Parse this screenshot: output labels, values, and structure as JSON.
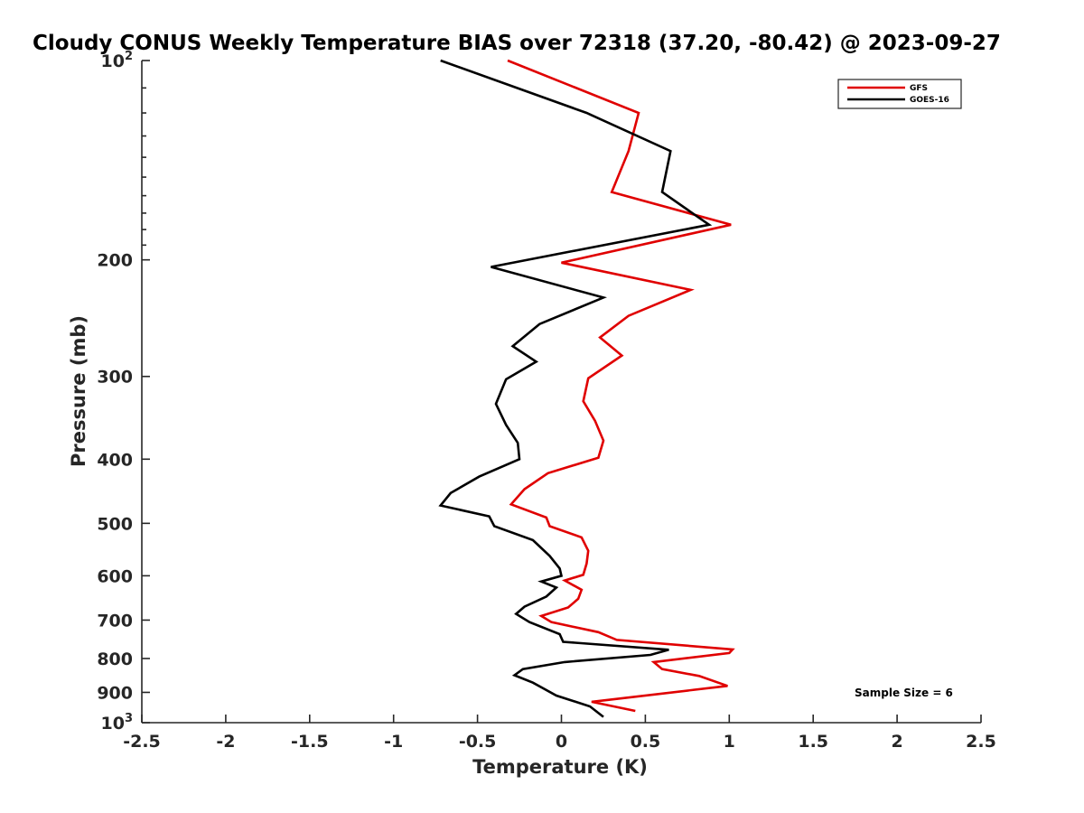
{
  "chart_data": {
    "type": "line",
    "title": "Cloudy CONUS Weekly Temperature BIAS over 72318 (37.20, -80.42) @ 2023-09-27",
    "xlabel": "Temperature (K)",
    "ylabel": "Pressure (mb)",
    "xlim": [
      -2.5,
      2.5
    ],
    "ylim": [
      100,
      1000
    ],
    "y_scale": "log",
    "y_direction": "reversed",
    "x_ticks": [
      "-2.5",
      "-2",
      "-1.5",
      "-1",
      "-0.5",
      "0",
      "0.5",
      "1",
      "1.5",
      "2",
      "2.5"
    ],
    "x_tick_values": [
      -2.5,
      -2,
      -1.5,
      -1,
      -0.5,
      0,
      0.5,
      1,
      1.5,
      2,
      2.5
    ],
    "y_ticks": [
      {
        "value": 100,
        "label": "10",
        "exp": "2"
      },
      {
        "value": 200,
        "label": "200"
      },
      {
        "value": 300,
        "label": "300"
      },
      {
        "value": 400,
        "label": "400"
      },
      {
        "value": 500,
        "label": "500"
      },
      {
        "value": 600,
        "label": "600"
      },
      {
        "value": 700,
        "label": "700"
      },
      {
        "value": 800,
        "label": "800"
      },
      {
        "value": 900,
        "label": "900"
      },
      {
        "value": 1000,
        "label": "10",
        "exp": "3"
      }
    ],
    "grid": false,
    "legend_position": "top-right",
    "annotation": "Sample Size = 6",
    "series": [
      {
        "name": "GFS",
        "color": "#e00000",
        "x": [
          -0.32,
          0.46,
          0.4,
          0.3,
          1.01,
          0.0,
          0.77,
          0.4,
          0.23,
          0.36,
          0.16,
          0.13,
          0.2,
          0.25,
          0.22,
          -0.08,
          -0.22,
          -0.3,
          -0.09,
          -0.07,
          0.12,
          0.16,
          0.15,
          0.13,
          0.02,
          0.12,
          0.1,
          0.04,
          -0.12,
          -0.06,
          0.22,
          0.33,
          1.02,
          1.0,
          0.55,
          0.6,
          0.82,
          0.99,
          0.18,
          0.44
        ],
        "y": [
          100,
          120,
          137,
          158,
          177,
          202,
          222,
          243,
          262,
          279,
          302,
          327,
          350,
          375,
          398,
          420,
          444,
          468,
          490,
          505,
          525,
          550,
          575,
          598,
          610,
          630,
          650,
          670,
          690,
          705,
          730,
          750,
          775,
          785,
          810,
          830,
          850,
          880,
          930,
          960
        ]
      },
      {
        "name": "GOES-16",
        "color": "#000000",
        "x": [
          -0.72,
          0.15,
          0.65,
          0.6,
          0.88,
          -0.42,
          0.25,
          -0.13,
          -0.29,
          -0.15,
          -0.33,
          -0.39,
          -0.33,
          -0.26,
          -0.25,
          -0.49,
          -0.66,
          -0.72,
          -0.43,
          -0.4,
          -0.17,
          -0.07,
          -0.01,
          0.0,
          -0.12,
          -0.03,
          -0.09,
          -0.22,
          -0.27,
          -0.19,
          -0.01,
          0.01,
          0.64,
          0.53,
          0.02,
          -0.23,
          -0.28,
          -0.17,
          -0.03,
          0.17,
          0.25
        ],
        "y": [
          100,
          120,
          137,
          158,
          177,
          205,
          228,
          250,
          270,
          285,
          303,
          330,
          355,
          378,
          400,
          425,
          450,
          470,
          488,
          505,
          530,
          560,
          585,
          600,
          612,
          625,
          645,
          668,
          685,
          705,
          735,
          755,
          776,
          790,
          810,
          830,
          848,
          870,
          910,
          945,
          980
        ]
      }
    ]
  }
}
